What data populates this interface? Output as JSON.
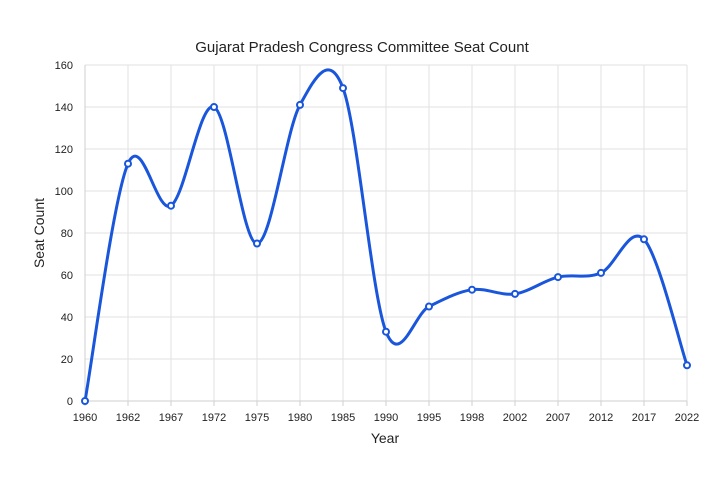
{
  "chart_data": {
    "type": "line",
    "title": "Gujarat Pradesh Congress Committee Seat Count",
    "xlabel": "Year",
    "ylabel": "Seat Count",
    "categories": [
      "1960",
      "1962",
      "1967",
      "1972",
      "1975",
      "1980",
      "1985",
      "1990",
      "1995",
      "1998",
      "2002",
      "2007",
      "2012",
      "2017",
      "2022"
    ],
    "series": [
      {
        "values": [
          0,
          113,
          93,
          140,
          75,
          141,
          149,
          33,
          45,
          53,
          51,
          59,
          61,
          77,
          17
        ]
      }
    ],
    "ylim": [
      0,
      160
    ],
    "yticks": [
      "0",
      "20",
      "40",
      "60",
      "80",
      "100",
      "120",
      "140",
      "160"
    ],
    "grid": true,
    "smooth": true,
    "color": "#1a56db"
  }
}
